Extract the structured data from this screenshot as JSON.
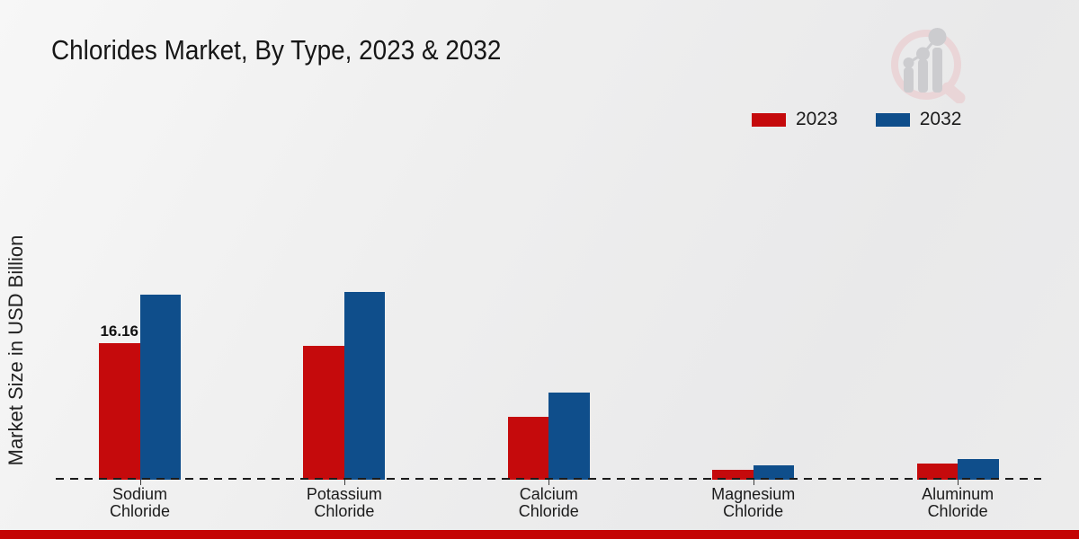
{
  "branding": {
    "logo_name": "market-research-future-watermark",
    "accent_bar_color": "#c40404",
    "logo_ring_color": "#ead2d4",
    "logo_bar_color": "#c7c7cb"
  },
  "chart_data": {
    "type": "bar",
    "title": "Chlorides Market, By Type, 2023 & 2032",
    "xlabel": "",
    "ylabel": "Market Size in USD Billion",
    "categories": [
      "Sodium Chloride",
      "Potassium Chloride",
      "Calcium Chloride",
      "Magnesium Chloride",
      "Aluminum Chloride"
    ],
    "series": [
      {
        "name": "2023",
        "color": "#c50a0c",
        "values": [
          16.16,
          15.85,
          7.4,
          1.07,
          1.79
        ],
        "value_labels": [
          "16.16",
          "",
          "",
          "",
          ""
        ]
      },
      {
        "name": "2032",
        "color": "#0f4e8b",
        "values": [
          22.0,
          22.35,
          10.25,
          1.61,
          2.33
        ],
        "value_labels": [
          "",
          "",
          "",
          "",
          ""
        ]
      }
    ],
    "ylim": [
      0,
      25
    ],
    "grid": false,
    "y_axis_ticks_visible": false,
    "legend_position": "top-right",
    "baseline_style": "dashed"
  }
}
